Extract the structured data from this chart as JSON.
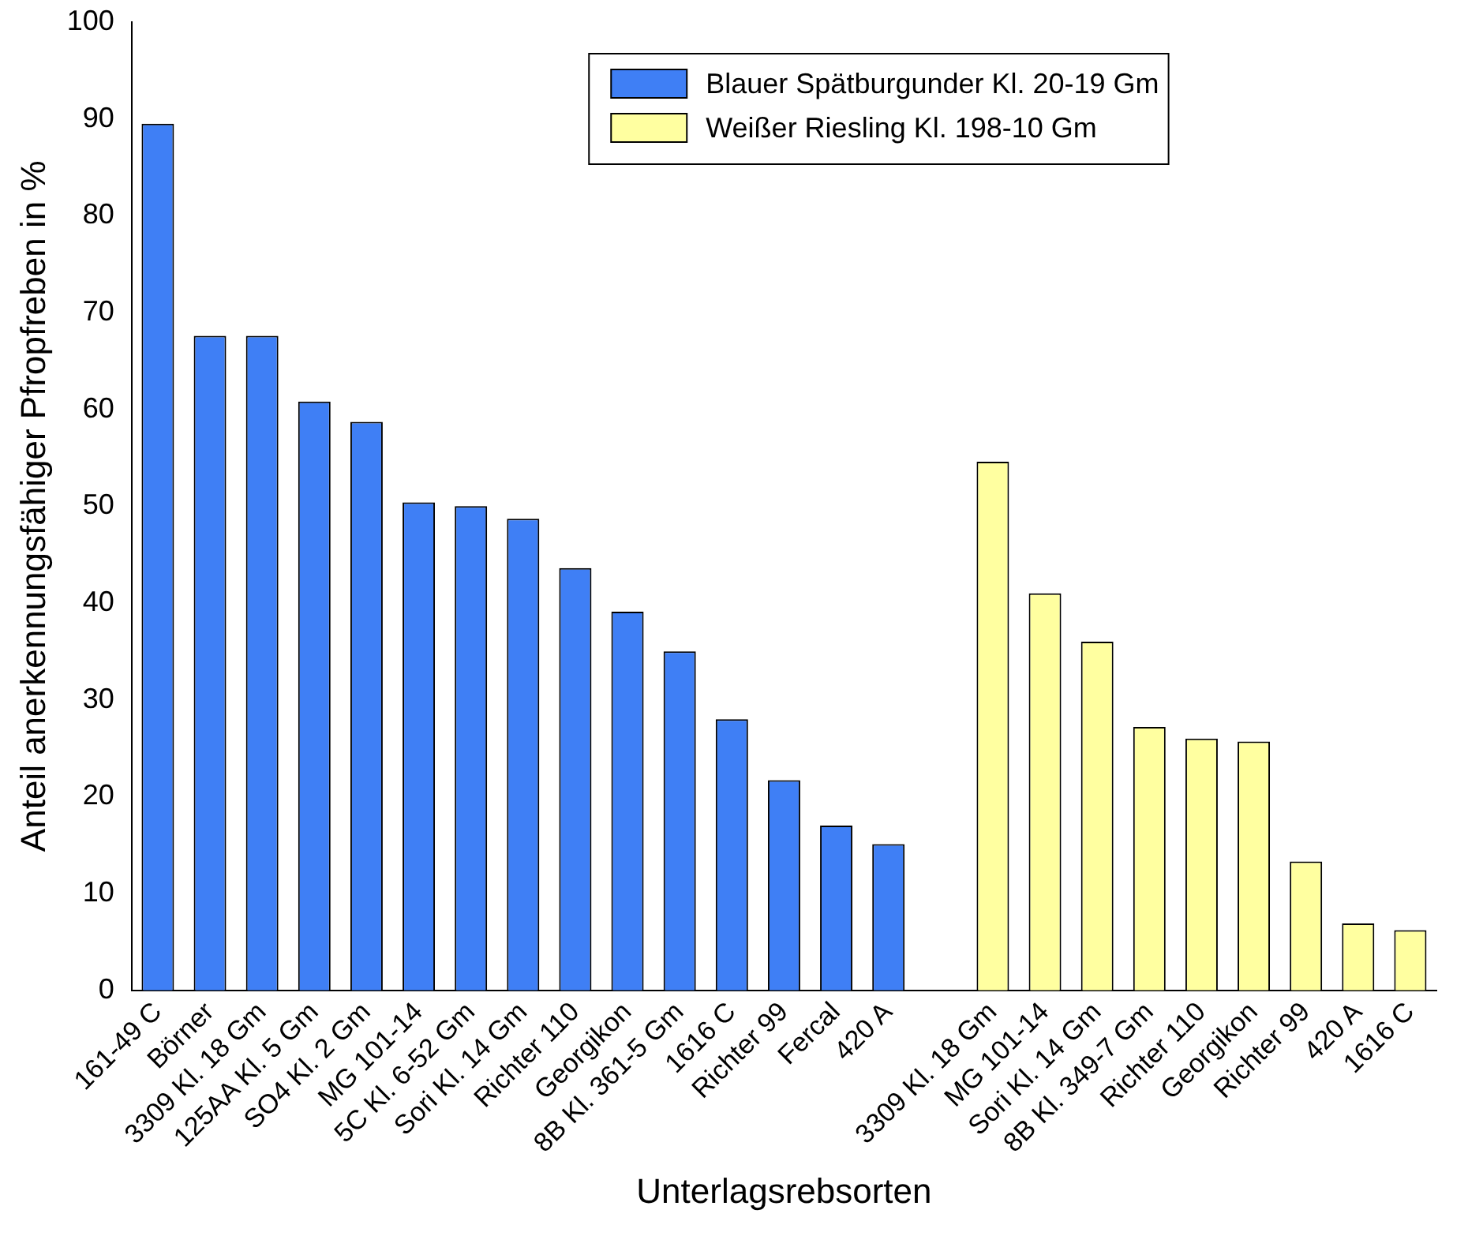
{
  "chart_data": {
    "type": "bar",
    "xlabel": "Unterlagsrebsorten",
    "ylabel": "Anteil anerkennungsfähiger Pfropfreben in %",
    "categories": [
      "161-49 C",
      "Börner",
      "3309 Kl. 18 Gm",
      "125AA Kl. 5 Gm",
      "SO4 Kl. 2 Gm",
      "MG 101-14",
      "5C Kl. 6-52 Gm",
      "Sori Kl. 14 Gm",
      "Richter 110",
      "Georgikon",
      "8B Kl. 361-5 Gm",
      "1616 C",
      "Richter 99",
      "Fercal",
      "420 A",
      null,
      "3309 Kl. 18 Gm",
      "MG 101-14",
      "Sori Kl. 14 Gm",
      "8B Kl. 349-7 Gm",
      "Richter 110",
      "Georgikon",
      "Richter 99",
      "420 A",
      "1616 C"
    ],
    "series": [
      {
        "name": "Blauer Spätburgunder Kl. 20-19 Gm",
        "color": "#3f7ff5",
        "values": [
          89.5,
          67.6,
          67.6,
          60.8,
          58.7,
          50.4,
          50.0,
          48.7,
          43.6,
          39.1,
          35.0,
          28.0,
          21.7,
          17.0,
          15.1,
          null,
          null,
          null,
          null,
          null,
          null,
          null,
          null,
          null,
          null
        ]
      },
      {
        "name": "Weißer Riesling Kl. 198-10 Gm",
        "color": "#ffffa0",
        "values": [
          null,
          null,
          null,
          null,
          null,
          null,
          null,
          null,
          null,
          null,
          null,
          null,
          null,
          null,
          null,
          null,
          54.6,
          41.0,
          36.0,
          27.2,
          26.0,
          25.7,
          13.3,
          6.9,
          6.2
        ]
      }
    ],
    "ylim": [
      0,
      100
    ],
    "yticks": [
      0,
      10,
      20,
      30,
      40,
      50,
      60,
      70,
      80,
      90,
      100
    ],
    "grid": false,
    "legend": "top"
  }
}
